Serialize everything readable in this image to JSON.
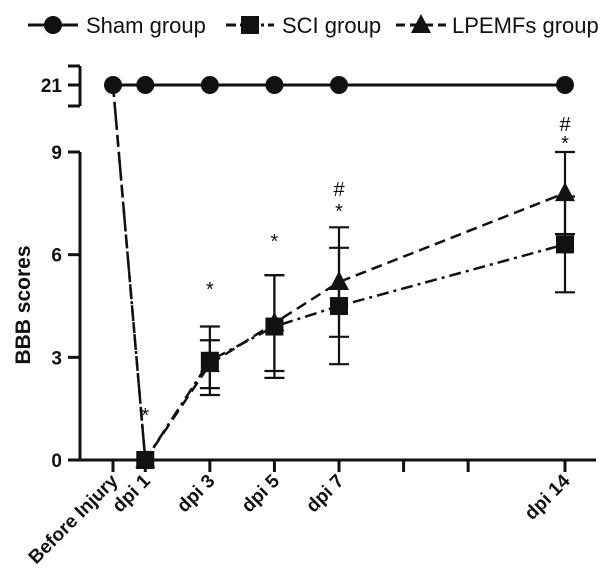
{
  "chart_data": {
    "type": "line",
    "ylabel": "BBB scores",
    "xlabel": "",
    "title": "",
    "categories": [
      "Before Injury",
      "dpi 1",
      "dpi 3",
      "dpi 5",
      "dpi 7",
      "dpi 14"
    ],
    "x": [
      0,
      1,
      3,
      5,
      7,
      14
    ],
    "yticks_lower": [
      "0",
      "3",
      "6",
      "9"
    ],
    "yticks_upper": [
      "21"
    ],
    "y_scale": "broken axis: 0–9 and 21",
    "legend_position": "top",
    "colors": {
      "ink": "#111111"
    },
    "series": [
      {
        "name": "Sham group",
        "marker": "circle",
        "line": "solid",
        "values": [
          21,
          21,
          21,
          21,
          21,
          21
        ]
      },
      {
        "name": "SCI group",
        "marker": "square",
        "line": "dash-dot",
        "values": [
          21,
          0,
          2.9,
          3.9,
          4.5,
          6.3
        ],
        "error": [
          0,
          0,
          1.0,
          1.5,
          1.7,
          1.4
        ]
      },
      {
        "name": "LPEMFs group",
        "marker": "triangle",
        "line": "dashed",
        "values": [
          21,
          0,
          2.8,
          4.0,
          5.2,
          7.8
        ],
        "error": [
          0,
          0,
          0.7,
          1.4,
          1.6,
          1.2
        ]
      }
    ],
    "annotations": [
      {
        "x": 1,
        "text": "*"
      },
      {
        "x": 3,
        "text": "*"
      },
      {
        "x": 5,
        "text": "*"
      },
      {
        "x": 7,
        "text": "*"
      },
      {
        "x": 7,
        "text": "#"
      },
      {
        "x": 14,
        "text": "*"
      },
      {
        "x": 14,
        "text": "#"
      }
    ]
  }
}
